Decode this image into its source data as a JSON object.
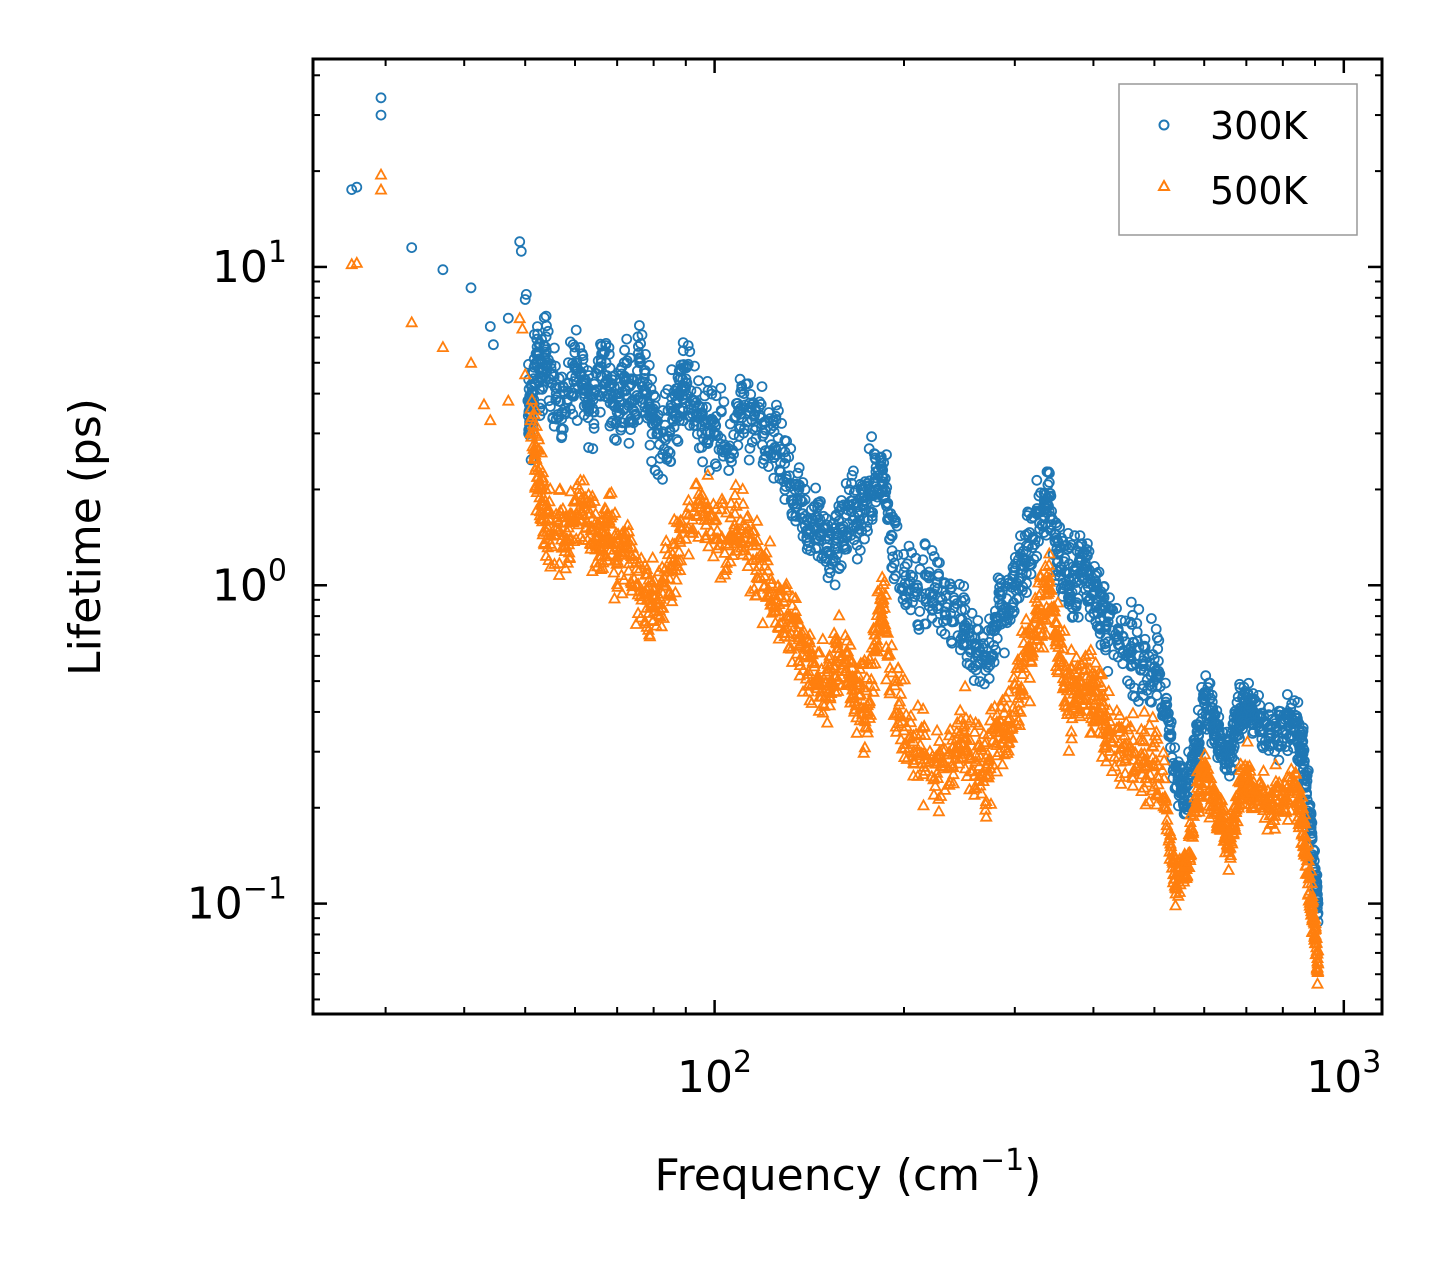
{
  "chart_data": {
    "type": "scatter",
    "xscale": "log",
    "yscale": "log",
    "xlim": [
      23,
      1150
    ],
    "ylim": [
      0.045,
      45
    ],
    "xlabel": "Frequency (cm",
    "xlabel_sup": "−1",
    "xlabel_close": ")",
    "ylabel": "Lifetime (ps)",
    "x_ticks": [
      {
        "value": 100,
        "base": "10",
        "exp": "2"
      },
      {
        "value": 1000,
        "base": "10",
        "exp": "3"
      }
    ],
    "y_ticks": [
      {
        "value": 0.1,
        "base": "10",
        "exp": "−1"
      },
      {
        "value": 1,
        "base": "10",
        "exp": "0"
      },
      {
        "value": 10,
        "base": "10",
        "exp": "1"
      }
    ],
    "legend": {
      "location": "top-right"
    },
    "series": [
      {
        "name": "300K",
        "marker": "circle",
        "color": "#1f77b4",
        "anchors": [
          [
            26.5,
            17.5
          ],
          [
            27,
            17.8
          ],
          [
            29.5,
            34
          ],
          [
            29.5,
            30
          ],
          [
            33,
            11.5
          ],
          [
            37,
            9.8
          ],
          [
            41,
            8.6
          ],
          [
            44,
            6.5
          ],
          [
            44.5,
            5.7
          ],
          [
            47,
            6.9
          ],
          [
            49,
            12
          ],
          [
            49.3,
            11.2
          ],
          [
            50,
            7.9
          ],
          [
            50.2,
            8.2
          ],
          [
            50.5,
            3.8
          ],
          [
            51,
            3.3
          ],
          [
            52,
            5.0
          ],
          [
            53,
            4.5
          ],
          [
            54,
            5.5
          ],
          [
            56,
            4.0
          ],
          [
            58,
            3.5
          ],
          [
            60,
            4.8
          ],
          [
            62,
            4.3
          ],
          [
            64,
            3.6
          ],
          [
            66,
            5.0
          ],
          [
            68,
            4.2
          ],
          [
            70,
            3.5
          ],
          [
            72,
            4.4
          ],
          [
            74,
            3.8
          ],
          [
            76,
            5.0
          ],
          [
            78,
            4.0
          ],
          [
            80,
            3.2
          ],
          [
            83,
            2.9
          ],
          [
            86,
            3.5
          ],
          [
            88,
            4.0
          ],
          [
            90,
            4.2
          ],
          [
            93,
            3.8
          ],
          [
            96,
            3.3
          ],
          [
            100,
            3.0
          ],
          [
            105,
            2.7
          ],
          [
            110,
            3.6
          ],
          [
            115,
            3.1
          ],
          [
            120,
            3.0
          ],
          [
            125,
            2.7
          ],
          [
            130,
            2.2
          ],
          [
            135,
            1.8
          ],
          [
            140,
            1.6
          ],
          [
            145,
            1.5
          ],
          [
            150,
            1.4
          ],
          [
            155,
            1.3
          ],
          [
            160,
            1.5
          ],
          [
            165,
            1.7
          ],
          [
            170,
            1.6
          ],
          [
            175,
            1.9
          ],
          [
            180,
            2.1
          ],
          [
            185,
            2.3
          ],
          [
            190,
            1.4
          ],
          [
            200,
            1.1
          ],
          [
            210,
            1.0
          ],
          [
            220,
            0.95
          ],
          [
            230,
            0.9
          ],
          [
            240,
            0.85
          ],
          [
            250,
            0.75
          ],
          [
            260,
            0.65
          ],
          [
            270,
            0.6
          ],
          [
            280,
            0.75
          ],
          [
            290,
            0.85
          ],
          [
            300,
            1.0
          ],
          [
            310,
            1.2
          ],
          [
            320,
            1.4
          ],
          [
            330,
            1.7
          ],
          [
            340,
            1.9
          ],
          [
            350,
            1.3
          ],
          [
            360,
            1.1
          ],
          [
            370,
            0.95
          ],
          [
            380,
            1.2
          ],
          [
            390,
            1.1
          ],
          [
            400,
            1.0
          ],
          [
            410,
            0.85
          ],
          [
            420,
            0.75
          ],
          [
            440,
            0.65
          ],
          [
            460,
            0.62
          ],
          [
            480,
            0.58
          ],
          [
            500,
            0.55
          ],
          [
            520,
            0.42
          ],
          [
            540,
            0.26
          ],
          [
            560,
            0.22
          ],
          [
            580,
            0.3
          ],
          [
            600,
            0.45
          ],
          [
            620,
            0.38
          ],
          [
            640,
            0.32
          ],
          [
            660,
            0.29
          ],
          [
            680,
            0.4
          ],
          [
            700,
            0.42
          ],
          [
            720,
            0.39
          ],
          [
            760,
            0.33
          ],
          [
            800,
            0.35
          ],
          [
            840,
            0.37
          ],
          [
            860,
            0.3
          ],
          [
            880,
            0.2
          ],
          [
            900,
            0.12
          ],
          [
            910,
            0.1
          ]
        ]
      },
      {
        "name": "500K",
        "marker": "triangle",
        "color": "#ff7f0e",
        "anchors": [
          [
            26.5,
            10.2
          ],
          [
            27,
            10.3
          ],
          [
            29.5,
            19.5
          ],
          [
            29.5,
            17.5
          ],
          [
            33,
            6.7
          ],
          [
            37,
            5.6
          ],
          [
            41,
            5.0
          ],
          [
            43,
            3.7
          ],
          [
            44,
            3.3
          ],
          [
            47,
            3.8
          ],
          [
            49,
            6.9
          ],
          [
            49.5,
            6.4
          ],
          [
            50,
            4.6
          ],
          [
            51,
            3.3
          ],
          [
            52,
            2.5
          ],
          [
            53,
            2.0
          ],
          [
            54,
            1.6
          ],
          [
            56,
            1.5
          ],
          [
            58,
            1.4
          ],
          [
            60,
            1.6
          ],
          [
            62,
            1.8
          ],
          [
            64,
            1.5
          ],
          [
            66,
            1.3
          ],
          [
            68,
            1.6
          ],
          [
            70,
            1.2
          ],
          [
            72,
            1.4
          ],
          [
            75,
            1.0
          ],
          [
            78,
            0.9
          ],
          [
            80,
            0.85
          ],
          [
            83,
            1.0
          ],
          [
            86,
            1.2
          ],
          [
            90,
            1.4
          ],
          [
            95,
            1.8
          ],
          [
            100,
            1.6
          ],
          [
            105,
            1.4
          ],
          [
            110,
            1.6
          ],
          [
            115,
            1.2
          ],
          [
            120,
            1.0
          ],
          [
            125,
            0.9
          ],
          [
            130,
            0.8
          ],
          [
            135,
            0.7
          ],
          [
            140,
            0.6
          ],
          [
            145,
            0.5
          ],
          [
            150,
            0.45
          ],
          [
            155,
            0.55
          ],
          [
            160,
            0.6
          ],
          [
            165,
            0.5
          ],
          [
            170,
            0.45
          ],
          [
            175,
            0.42
          ],
          [
            180,
            0.7
          ],
          [
            185,
            0.9
          ],
          [
            190,
            0.55
          ],
          [
            200,
            0.35
          ],
          [
            210,
            0.3
          ],
          [
            220,
            0.28
          ],
          [
            230,
            0.27
          ],
          [
            240,
            0.3
          ],
          [
            250,
            0.33
          ],
          [
            260,
            0.28
          ],
          [
            270,
            0.27
          ],
          [
            280,
            0.32
          ],
          [
            290,
            0.35
          ],
          [
            300,
            0.4
          ],
          [
            310,
            0.55
          ],
          [
            320,
            0.7
          ],
          [
            330,
            0.85
          ],
          [
            340,
            0.95
          ],
          [
            350,
            0.7
          ],
          [
            360,
            0.5
          ],
          [
            370,
            0.42
          ],
          [
            380,
            0.5
          ],
          [
            390,
            0.48
          ],
          [
            400,
            0.45
          ],
          [
            410,
            0.4
          ],
          [
            420,
            0.35
          ],
          [
            440,
            0.32
          ],
          [
            460,
            0.3
          ],
          [
            480,
            0.28
          ],
          [
            500,
            0.27
          ],
          [
            520,
            0.2
          ],
          [
            540,
            0.12
          ],
          [
            560,
            0.13
          ],
          [
            580,
            0.2
          ],
          [
            600,
            0.26
          ],
          [
            620,
            0.22
          ],
          [
            640,
            0.18
          ],
          [
            660,
            0.15
          ],
          [
            680,
            0.22
          ],
          [
            700,
            0.25
          ],
          [
            720,
            0.23
          ],
          [
            760,
            0.2
          ],
          [
            800,
            0.22
          ],
          [
            840,
            0.23
          ],
          [
            860,
            0.18
          ],
          [
            880,
            0.12
          ],
          [
            900,
            0.08
          ],
          [
            910,
            0.065
          ]
        ]
      }
    ]
  }
}
